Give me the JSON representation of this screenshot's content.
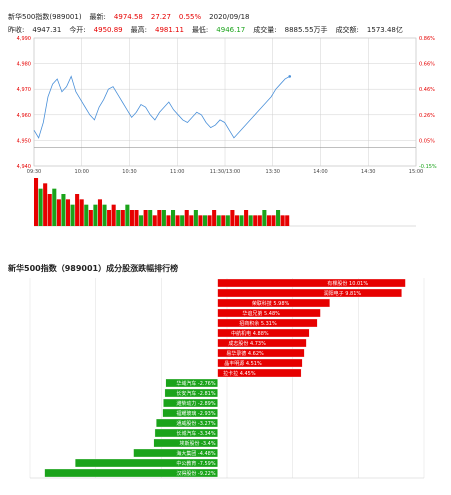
{
  "header": {
    "line1": [
      {
        "label": "新华500指数(989001)",
        "cls": ""
      },
      {
        "label": "最新:",
        "cls": ""
      },
      {
        "label": "4974.58",
        "cls": "red"
      },
      {
        "label": "27.27",
        "cls": "red"
      },
      {
        "label": "0.55%",
        "cls": "red"
      },
      {
        "label": "2020/09/18",
        "cls": ""
      }
    ],
    "line2": [
      {
        "label": "昨收:",
        "cls": ""
      },
      {
        "label": "4947.31",
        "cls": ""
      },
      {
        "label": "今开:",
        "cls": ""
      },
      {
        "label": "4950.89",
        "cls": "red"
      },
      {
        "label": "最高:",
        "cls": ""
      },
      {
        "label": "4981.11",
        "cls": "red"
      },
      {
        "label": "最低:",
        "cls": ""
      },
      {
        "label": "4946.17",
        "cls": "grn"
      },
      {
        "label": "成交量:",
        "cls": ""
      },
      {
        "label": "8885.55万手",
        "cls": ""
      },
      {
        "label": "成交额:",
        "cls": ""
      },
      {
        "label": "1573.48亿",
        "cls": ""
      }
    ]
  },
  "colors": {
    "up": "#e60000",
    "down": "#1aa31a",
    "line": "#4a90d9",
    "grid": "#d0d0d0"
  },
  "intraday": {
    "y_ticks_left": [
      "4,990",
      "4,980",
      "4,970",
      "4,960",
      "4,950",
      "4,940"
    ],
    "y_ticks_right": [
      "0.86%",
      "0.66%",
      "0.46%",
      "0.26%",
      "0.05%",
      "-0.15%"
    ],
    "x_ticks": [
      "09:30",
      "10:00",
      "10:30",
      "11:00",
      "11:30/13:00",
      "13:30",
      "14:00",
      "14:30",
      "15:00"
    ],
    "ylim": [
      4940,
      4990
    ],
    "prev_close": 4947.31,
    "prices": [
      4954,
      4951,
      4957,
      4967,
      4972,
      4974,
      4969,
      4971,
      4975,
      4969,
      4966,
      4963,
      4960,
      4958,
      4963,
      4966,
      4970,
      4971,
      4968,
      4965,
      4962,
      4959,
      4961,
      4964,
      4963,
      4960,
      4958,
      4961,
      4963,
      4965,
      4962,
      4960,
      4958,
      4957,
      4959,
      4961,
      4960,
      4957,
      4955,
      4956,
      4958,
      4957,
      4954,
      4951,
      4953,
      4955,
      4957,
      4959,
      4961,
      4963,
      4965,
      4967,
      4970,
      4972,
      4974,
      4975
    ],
    "volumes": [
      9,
      7,
      8,
      6,
      7,
      5,
      6,
      5,
      4,
      6,
      5,
      4,
      3,
      4,
      5,
      4,
      3,
      4,
      3,
      3,
      4,
      3,
      3,
      2,
      3,
      3,
      2,
      3,
      3,
      2,
      3,
      2,
      2,
      3,
      2,
      3,
      2,
      2,
      2,
      3,
      2,
      2,
      2,
      3,
      2,
      2,
      3,
      2,
      2,
      2,
      3,
      2,
      2,
      3,
      2,
      2
    ],
    "volume_up": [
      1,
      0,
      1,
      1,
      0,
      1,
      0,
      1,
      0,
      1,
      1,
      0,
      1,
      0,
      1,
      0,
      1,
      1,
      0,
      1,
      0,
      1,
      1,
      0,
      1,
      0,
      1,
      1,
      0,
      1,
      0,
      1,
      0,
      1,
      1,
      0,
      1,
      0,
      1,
      1,
      0,
      1,
      0,
      1,
      1,
      0,
      1,
      0,
      1,
      1,
      0,
      1,
      1,
      0,
      1,
      1
    ]
  },
  "ranking": {
    "title": "新华500指数（989001）成分股涨跌幅排行榜",
    "items": [
      {
        "name": "有棵股份",
        "pct": 10.01
      },
      {
        "name": "润阳电子",
        "pct": 9.81
      },
      {
        "name": "荣联科技",
        "pct": 5.98
      },
      {
        "name": "华谊兄弟",
        "pct": 5.48
      },
      {
        "name": "招商积余",
        "pct": 5.31
      },
      {
        "name": "中航机电",
        "pct": 4.88
      },
      {
        "name": "成志股份",
        "pct": 4.73
      },
      {
        "name": "易华录德",
        "pct": 4.62
      },
      {
        "name": "晶丰明源",
        "pct": 4.51
      },
      {
        "name": "拉卡拉",
        "pct": 4.45
      },
      {
        "name": "华域汽车",
        "pct": -2.76
      },
      {
        "name": "长安汽车",
        "pct": -2.81
      },
      {
        "name": "潍柴动力",
        "pct": -2.89
      },
      {
        "name": "福耀玻璃",
        "pct": -2.93
      },
      {
        "name": "通威股份",
        "pct": -3.27
      },
      {
        "name": "长城汽车",
        "pct": -3.34
      },
      {
        "name": "埃斯股份",
        "pct": -3.4
      },
      {
        "name": "海大集团",
        "pct": -4.48
      },
      {
        "name": "中公教育",
        "pct": -7.59
      },
      {
        "name": "汉得股份",
        "pct": -9.22
      }
    ],
    "xlim": [
      -10,
      11
    ]
  }
}
